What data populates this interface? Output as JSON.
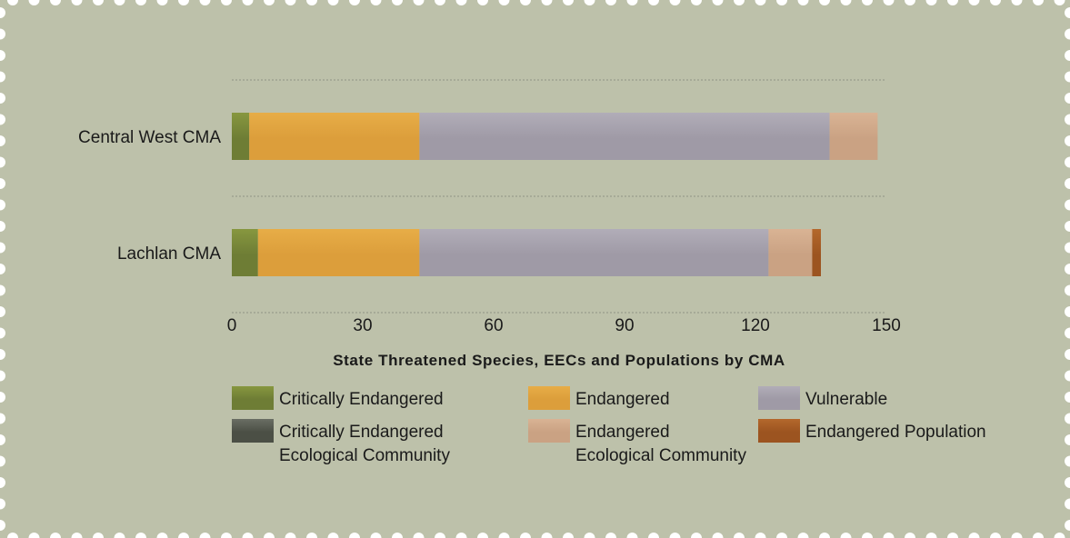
{
  "colors": {
    "panel": "#bdc1aa",
    "border_dots": "#ffffff",
    "grid": "#8f9484"
  },
  "chart_data": {
    "type": "bar",
    "orientation": "horizontal",
    "stacked": true,
    "title": "State Threatened Species, EECs and Populations by CMA",
    "xlabel": "",
    "ylabel": "",
    "categories": [
      "Central West CMA",
      "Lachlan CMA"
    ],
    "xlim": [
      0,
      150
    ],
    "xticks": [
      0,
      30,
      60,
      90,
      120,
      150
    ],
    "grid": "dotted horizontal lines between categories",
    "legend_position": "bottom",
    "series": [
      {
        "name": "Critically Endangered",
        "name_lines": [
          "Critically Endangered"
        ],
        "color": "#6e7d35",
        "color_light": "#87973f",
        "values": [
          4,
          6
        ]
      },
      {
        "name": "Endangered",
        "name_lines": [
          "Endangered"
        ],
        "color": "#dc9e3b",
        "color_light": "#e7ad47",
        "values": [
          39,
          37
        ]
      },
      {
        "name": "Vulnerable",
        "name_lines": [
          "Vulnerable"
        ],
        "color": "#9f9aa6",
        "color_light": "#b1adb8",
        "values": [
          94,
          80
        ]
      },
      {
        "name": "Endangered Ecological Community",
        "name_lines": [
          "Endangered",
          "Ecological Community"
        ],
        "color": "#caa283",
        "color_light": "#d9b394",
        "values": [
          11,
          10
        ]
      },
      {
        "name": "Endangered Population",
        "name_lines": [
          "Endangered Population"
        ],
        "color": "#9c5420",
        "color_light": "#b4682c",
        "values": [
          0,
          2
        ]
      },
      {
        "name": "Critically Endangered Ecological Community",
        "name_lines": [
          "Critically Endangered",
          "Ecological Community"
        ],
        "color": "#4b4f45",
        "color_light": "#6a6e64",
        "values": [
          0,
          0
        ]
      }
    ]
  }
}
